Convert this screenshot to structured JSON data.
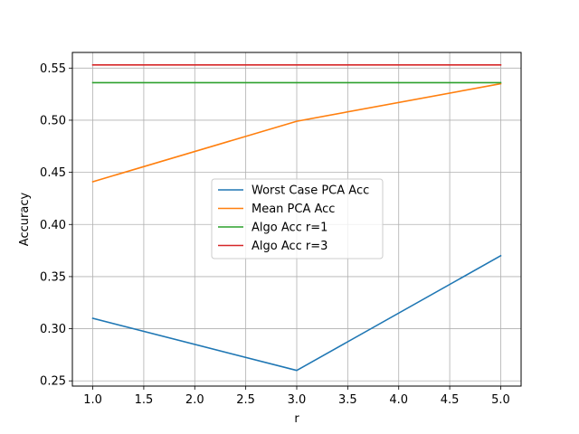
{
  "chart_data": {
    "type": "line",
    "title": "",
    "xlabel": "r",
    "ylabel": "Accuracy",
    "xlim": [
      0.8,
      5.2
    ],
    "ylim": [
      0.245,
      0.565
    ],
    "x_ticks": [
      1.0,
      1.5,
      2.0,
      2.5,
      3.0,
      3.5,
      4.0,
      4.5,
      5.0
    ],
    "x_tick_labels": [
      "1.0",
      "1.5",
      "2.0",
      "2.5",
      "3.0",
      "3.5",
      "4.0",
      "4.5",
      "5.0"
    ],
    "y_ticks": [
      0.25,
      0.3,
      0.35,
      0.4,
      0.45,
      0.5,
      0.55
    ],
    "y_tick_labels": [
      "0.25",
      "0.30",
      "0.35",
      "0.40",
      "0.45",
      "0.50",
      "0.55"
    ],
    "grid": true,
    "legend_position": "center",
    "series": [
      {
        "name": "Worst Case PCA Acc",
        "color": "#1f77b4",
        "x": [
          1,
          3,
          5
        ],
        "y": [
          0.31,
          0.26,
          0.37
        ]
      },
      {
        "name": "Mean PCA Acc",
        "color": "#ff7f0e",
        "x": [
          1,
          3,
          5
        ],
        "y": [
          0.441,
          0.499,
          0.535
        ]
      },
      {
        "name": "Algo Acc r=1",
        "color": "#2ca02c",
        "x": [
          1,
          3,
          5
        ],
        "y": [
          0.536,
          0.536,
          0.536
        ]
      },
      {
        "name": "Algo Acc r=3",
        "color": "#d62728",
        "x": [
          1,
          3,
          5
        ],
        "y": [
          0.553,
          0.553,
          0.553
        ]
      }
    ]
  }
}
